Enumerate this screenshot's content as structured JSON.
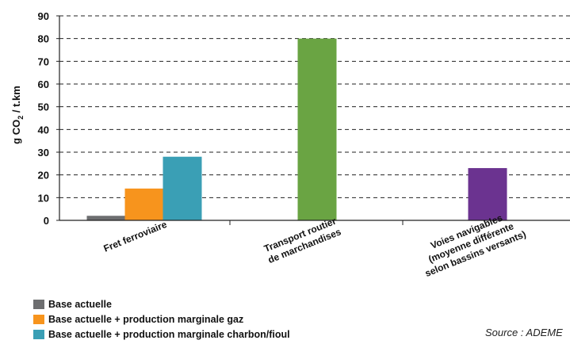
{
  "chart_data": {
    "type": "bar",
    "ylabel": "g CO",
    "ylabel_sub": "2",
    "ylabel_rest": " / t.km",
    "ylim": [
      0,
      90
    ],
    "yticks": [
      0,
      10,
      20,
      30,
      40,
      50,
      60,
      70,
      80,
      90
    ],
    "grid": "dashed horizontal",
    "categories": [
      [
        "Fret ferroviaire"
      ],
      [
        "Transport routier",
        "de marchandises"
      ],
      [
        "Voies navigables",
        "(moyenne différente",
        "selon bassins versants)"
      ]
    ],
    "bars": [
      {
        "category": 0,
        "series": 0,
        "value": 2,
        "color": "#6d6e70"
      },
      {
        "category": 0,
        "series": 1,
        "value": 14,
        "color": "#f7941d"
      },
      {
        "category": 0,
        "series": 2,
        "value": 28,
        "color": "#3a9fb5"
      },
      {
        "category": 1,
        "series": 3,
        "value": 80,
        "color": "#6aa443"
      },
      {
        "category": 2,
        "series": 4,
        "value": 23,
        "color": "#6b3390"
      }
    ],
    "legend": [
      {
        "label": "Base actuelle",
        "color": "#6d6e70"
      },
      {
        "label": "Base actuelle + production marginale gaz",
        "color": "#f7941d"
      },
      {
        "label": "Base actuelle + production marginale charbon/fioul",
        "color": "#3a9fb5"
      }
    ],
    "source": "Source : ADEME"
  }
}
